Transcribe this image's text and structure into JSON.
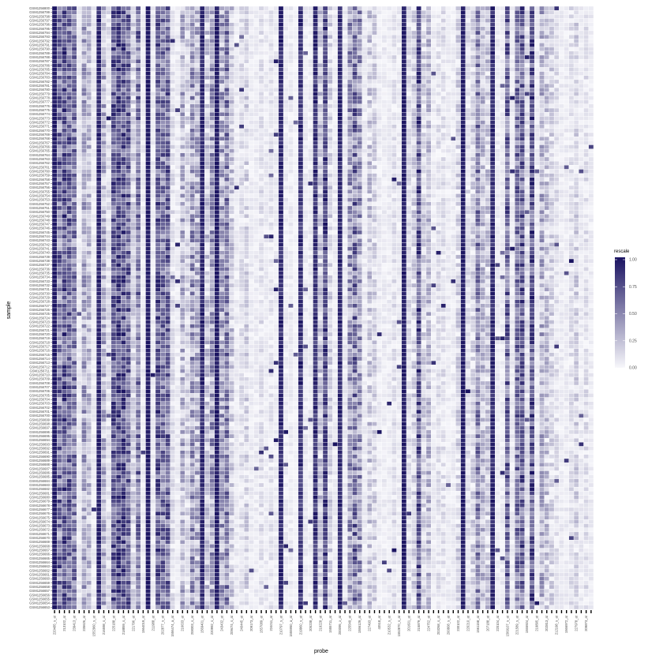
{
  "chart_data": {
    "type": "heatmap",
    "xlabel": "probe",
    "ylabel": "sample",
    "legend": {
      "title": "rescale",
      "placement": "right",
      "ticks": [
        "0.00",
        "0.25",
        "0.50",
        "0.75",
        "1.00"
      ],
      "colors": {
        "low": "#f7f7fb",
        "high": "#1a1361"
      }
    },
    "x_tick_labels": [
      "220485_s_at",
      "221922_at",
      "213102_at",
      "226621_at",
      "239413_at",
      "206032_s_at",
      "235626_at",
      "242903_at",
      "1552960_s_at",
      "205410_s_at",
      "216598_s_at",
      "222404_at",
      "225188_at",
      "206714_at",
      "218859_s_at",
      "213988_s_at",
      "221796_at",
      "232063_at",
      "1564019_at",
      "227811_at",
      "211988_at",
      "201655_s_at",
      "202877_s_at",
      "41660_at",
      "1556474_a_at",
      "229031_s_at",
      "216633_at",
      "230453_at",
      "208303_s_at",
      "207672_at",
      "1569401_at",
      "219858_at",
      "220992_s_at",
      "202605_at",
      "243432_at",
      "1557651_at",
      "209474_s_at",
      "213435_at",
      "240445_at",
      "235392_at",
      "209173_at",
      "222262_s_at",
      "1557089_at",
      "205102_at",
      "224011_at",
      "227603_at",
      "210797_s_at",
      "217419_x_at",
      "1555950_a_at",
      "1554989_at",
      "219960_s_at",
      "242862_at",
      "205238_at",
      "235201_at",
      "219228_at",
      "224599_at",
      "1555711_at",
      "226589_at",
      "200095_x_at",
      "206985_at",
      "225549_at",
      "207490_at",
      "1556129_at",
      "210003_at",
      "227493_at",
      "231748_at",
      "40518_at",
      "202350_s_at",
      "210532_s_at",
      "224935_at",
      "1552870_s_at",
      "231543_at",
      "201601_at",
      "228123_s_at",
      "215879_at",
      "213245_at",
      "224752_at",
      "209618_at",
      "203268_s_at",
      "224190_x_at",
      "200808_s_at",
      "241338_at",
      "230102_at",
      "228872_at",
      "220210_at",
      "1554877_a_at",
      "1561158_at",
      "241228_at",
      "207188_at",
      "206719_at",
      "220104_at",
      "242119_at",
      "1569107_s_at",
      "1561059_at",
      "221589_s_at",
      "206625_at",
      "1555924_at",
      "1568822_at",
      "219895_at",
      "241399_at",
      "202813_at",
      "215707_s_at",
      "212198_s_at",
      "240384_at",
      "1566972_at",
      "216071_x_at",
      "227978_at",
      "205436_s_at",
      "209873_at",
      "212871_at"
    ],
    "y_tick_labels": [
      "GSM1256800",
      "GSM1256799",
      "GSM1256798",
      "GSM1256797",
      "GSM1256796",
      "GSM1256795",
      "GSM1256794",
      "GSM1256793",
      "GSM1256792",
      "GSM1256791",
      "GSM1256790",
      "GSM1256789",
      "GSM1256788",
      "GSM1256787",
      "GSM1256786",
      "GSM1256785",
      "GSM1256784",
      "GSM1256783",
      "GSM1256782",
      "GSM1256781",
      "GSM1256780",
      "GSM1256779",
      "GSM1256778",
      "GSM1256777",
      "GSM1256776",
      "GSM1256775",
      "GSM1256774",
      "GSM1256773",
      "GSM1256772",
      "GSM1256771",
      "GSM1256770",
      "GSM1256769",
      "GSM1256768",
      "GSM1256767",
      "GSM1256766",
      "GSM1256765",
      "GSM1256764",
      "GSM1256763",
      "GSM1256762",
      "GSM1256761",
      "GSM1256760",
      "GSM1256759",
      "GSM1256758",
      "GSM1256757",
      "GSM1256756",
      "GSM1256755",
      "GSM1256754",
      "GSM1256753",
      "GSM1256752",
      "GSM1256751",
      "GSM1256750",
      "GSM1256749",
      "GSM1256748",
      "GSM1256747",
      "GSM1256746",
      "GSM1256745",
      "GSM1256744",
      "GSM1256743",
      "GSM1256742",
      "GSM1256741",
      "GSM1256740",
      "GSM1256739",
      "GSM1256738",
      "GSM1256737",
      "GSM1256736",
      "GSM1256735",
      "GSM1256734",
      "GSM1256733",
      "GSM1256732",
      "GSM1256731",
      "GSM1256730",
      "GSM1256729",
      "GSM1256728",
      "GSM1256727",
      "GSM1256726",
      "GSM1256725",
      "GSM1256724",
      "GSM1256723",
      "GSM1256722",
      "GSM1256721",
      "GSM1256720",
      "GSM1256719",
      "GSM1256718",
      "GSM1256717",
      "GSM1256716",
      "GSM1256715",
      "GSM1256714",
      "GSM1256713",
      "GSM1256712",
      "GSM1256711",
      "GSM1256710",
      "GSM1256709",
      "GSM1256708",
      "GSM1256707",
      "GSM1256706",
      "GSM1256705",
      "GSM1256704",
      "GSM1256703",
      "GSM1256702",
      "GSM1256701",
      "GSM1256700",
      "GSM1256699",
      "GSM1256698",
      "GSM1256697",
      "GSM1256696",
      "GSM1256695",
      "GSM1256694",
      "GSM1256693",
      "GSM1256692",
      "GSM1256691",
      "GSM1256690",
      "GSM1256689",
      "GSM1256688",
      "GSM1256687",
      "GSM1256686",
      "GSM1256685",
      "GSM1256684",
      "GSM1256683",
      "GSM1256682",
      "GSM1256681",
      "GSM1256680",
      "GSM1256679",
      "GSM1256678",
      "GSM1256677",
      "GSM1256676",
      "GSM1256675",
      "GSM1256674",
      "GSM1256673",
      "GSM1256672",
      "GSM1256671",
      "GSM1256670",
      "GSM1256669",
      "GSM1256668",
      "GSM1256667",
      "GSM1256666",
      "GSM1256665",
      "GSM1256664",
      "GSM1256663",
      "GSM1256662",
      "GSM1256661",
      "GSM1256660",
      "GSM1256659",
      "GSM1256658",
      "GSM1256657",
      "GSM1256656",
      "GSM1256655",
      "GSM1256654",
      "GSM1256653"
    ],
    "column_mean_rescale": [
      0.95,
      0.55,
      0.7,
      0.6,
      0.5,
      0.05,
      0.35,
      0.25,
      0.05,
      0.9,
      0.3,
      0.1,
      0.65,
      0.75,
      0.7,
      0.6,
      0.15,
      0.55,
      0.05,
      0.95,
      0.05,
      0.65,
      0.55,
      0.6,
      0.1,
      0.05,
      0.3,
      0.15,
      0.4,
      0.3,
      0.9,
      0.2,
      0.4,
      0.95,
      0.35,
      0.5,
      0.2,
      0.05,
      0.1,
      0.15,
      0.05,
      0.05,
      0.1,
      0.05,
      0.08,
      0.05,
      0.9,
      0.05,
      0.05,
      0.02,
      0.85,
      0.05,
      0.05,
      0.85,
      0.2,
      0.75,
      0.15,
      0.05,
      0.9,
      0.05,
      0.4,
      0.55,
      0.4,
      0.05,
      0.2,
      0.15,
      0.05,
      0.05,
      0.05,
      0.1,
      0.05,
      0.95,
      0.1,
      0.15,
      0.7,
      0.15,
      0.25,
      0.05,
      0.1,
      0.1,
      0.05,
      0.05,
      0.15,
      0.95,
      0.1,
      0.15,
      0.5,
      0.25,
      0.2,
      0.9,
      0.05,
      0.05,
      0.6,
      0.05,
      0.55,
      0.65,
      0.1,
      0.7,
      0.05,
      0.3,
      0.2,
      0.15,
      0.1,
      0.05,
      0.05,
      0.1,
      0.15,
      0.05,
      0.1,
      0.05
    ],
    "column_spread": [
      0.05,
      0.35,
      0.3,
      0.3,
      0.3,
      0.05,
      0.25,
      0.2,
      0.05,
      0.1,
      0.25,
      0.1,
      0.3,
      0.25,
      0.3,
      0.3,
      0.15,
      0.3,
      0.05,
      0.05,
      0.05,
      0.3,
      0.3,
      0.3,
      0.1,
      0.05,
      0.25,
      0.15,
      0.3,
      0.25,
      0.1,
      0.2,
      0.3,
      0.05,
      0.3,
      0.3,
      0.2,
      0.05,
      0.1,
      0.15,
      0.05,
      0.05,
      0.1,
      0.05,
      0.08,
      0.05,
      0.1,
      0.05,
      0.05,
      0.02,
      0.15,
      0.05,
      0.05,
      0.15,
      0.2,
      0.25,
      0.15,
      0.05,
      0.1,
      0.05,
      0.3,
      0.35,
      0.3,
      0.05,
      0.2,
      0.15,
      0.05,
      0.05,
      0.05,
      0.1,
      0.05,
      0.05,
      0.1,
      0.15,
      0.3,
      0.15,
      0.2,
      0.05,
      0.1,
      0.1,
      0.05,
      0.05,
      0.15,
      0.05,
      0.1,
      0.15,
      0.3,
      0.2,
      0.2,
      0.1,
      0.05,
      0.05,
      0.3,
      0.05,
      0.3,
      0.3,
      0.1,
      0.3,
      0.05,
      0.25,
      0.2,
      0.15,
      0.1,
      0.05,
      0.05,
      0.1,
      0.15,
      0.05,
      0.1,
      0.05
    ],
    "grid": false
  }
}
